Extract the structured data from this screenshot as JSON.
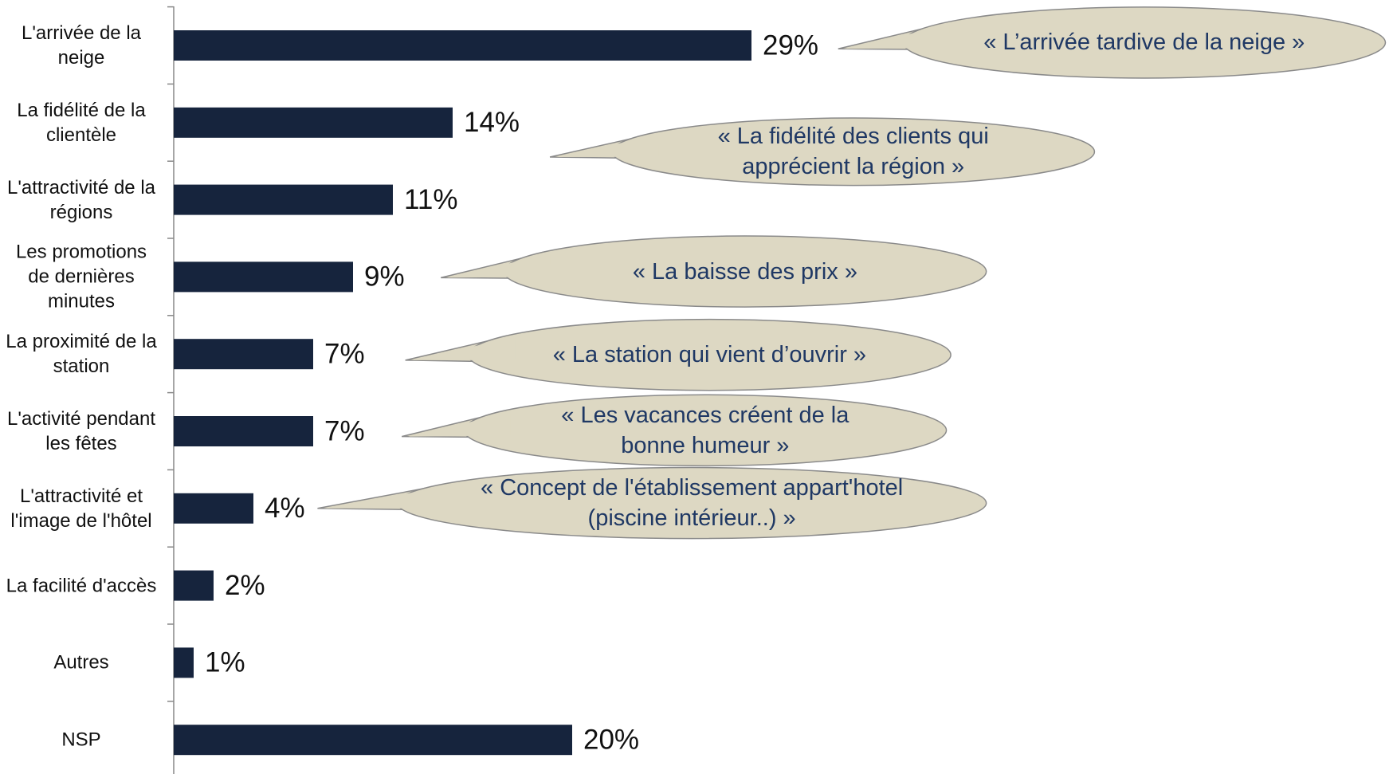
{
  "chart_data": {
    "type": "bar",
    "orientation": "horizontal",
    "categories": [
      "L'arrivée de la neige",
      "La fidélité de la clientèle",
      "L'attractivité de la régions",
      "Les promotions de dernières minutes",
      "La proximité de la station",
      "L'activité pendant les fêtes",
      "L'attractivité et l'image de l'hôtel",
      "La facilité d'accès",
      "Autres",
      "NSP"
    ],
    "values": [
      29,
      14,
      11,
      9,
      7,
      7,
      4,
      2,
      1,
      20
    ],
    "value_labels": [
      "29%",
      "14%",
      "11%",
      "9%",
      "7%",
      "7%",
      "4%",
      "2%",
      "1%",
      "20%"
    ],
    "color": "#16243d",
    "annotations": [
      "« L’arrivée tardive de la neige »",
      "« La fidélité des clients qui apprécient la région »",
      "« La baisse des prix »",
      "« La station qui vient d’ouvrir »",
      "« Les vacances créent de la bonne humeur »",
      "« Concept de l'établissement appart'hotel (piscine intérieur..) »"
    ]
  }
}
